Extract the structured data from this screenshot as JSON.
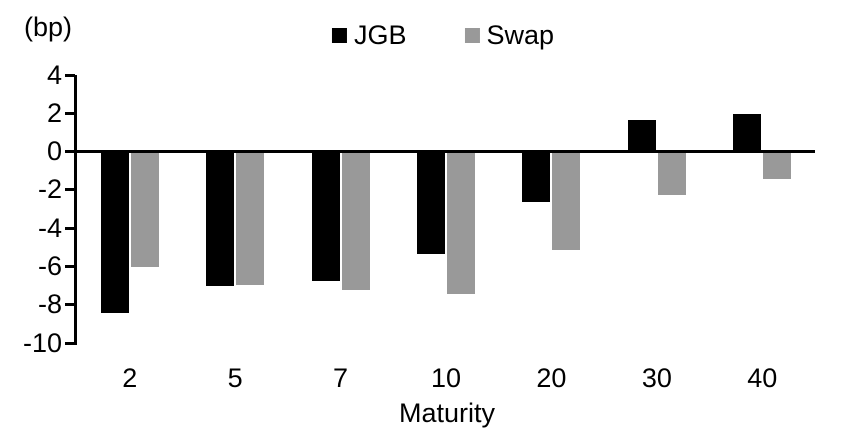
{
  "chart_data": {
    "type": "bar",
    "title": "",
    "unit_label": "(bp)",
    "xlabel": "Maturity",
    "ylabel": "",
    "categories": [
      "2",
      "5",
      "7",
      "10",
      "20",
      "30",
      "40"
    ],
    "series": [
      {
        "name": "JGB",
        "color": "#000000",
        "values": [
          -8.5,
          -7.1,
          -6.8,
          -5.4,
          -2.7,
          1.7,
          2.0
        ]
      },
      {
        "name": "Swap",
        "color": "#999999",
        "values": [
          -6.1,
          -7.0,
          -7.3,
          -7.5,
          -5.2,
          -2.3,
          -1.5
        ]
      }
    ],
    "yticks": [
      4,
      2,
      0,
      -2,
      -4,
      -6,
      -8,
      -10
    ],
    "ylim": [
      -10,
      4
    ],
    "legend_position": "top-center",
    "grid": false,
    "background_color": "#ffffff",
    "axis_color": "#000000"
  }
}
